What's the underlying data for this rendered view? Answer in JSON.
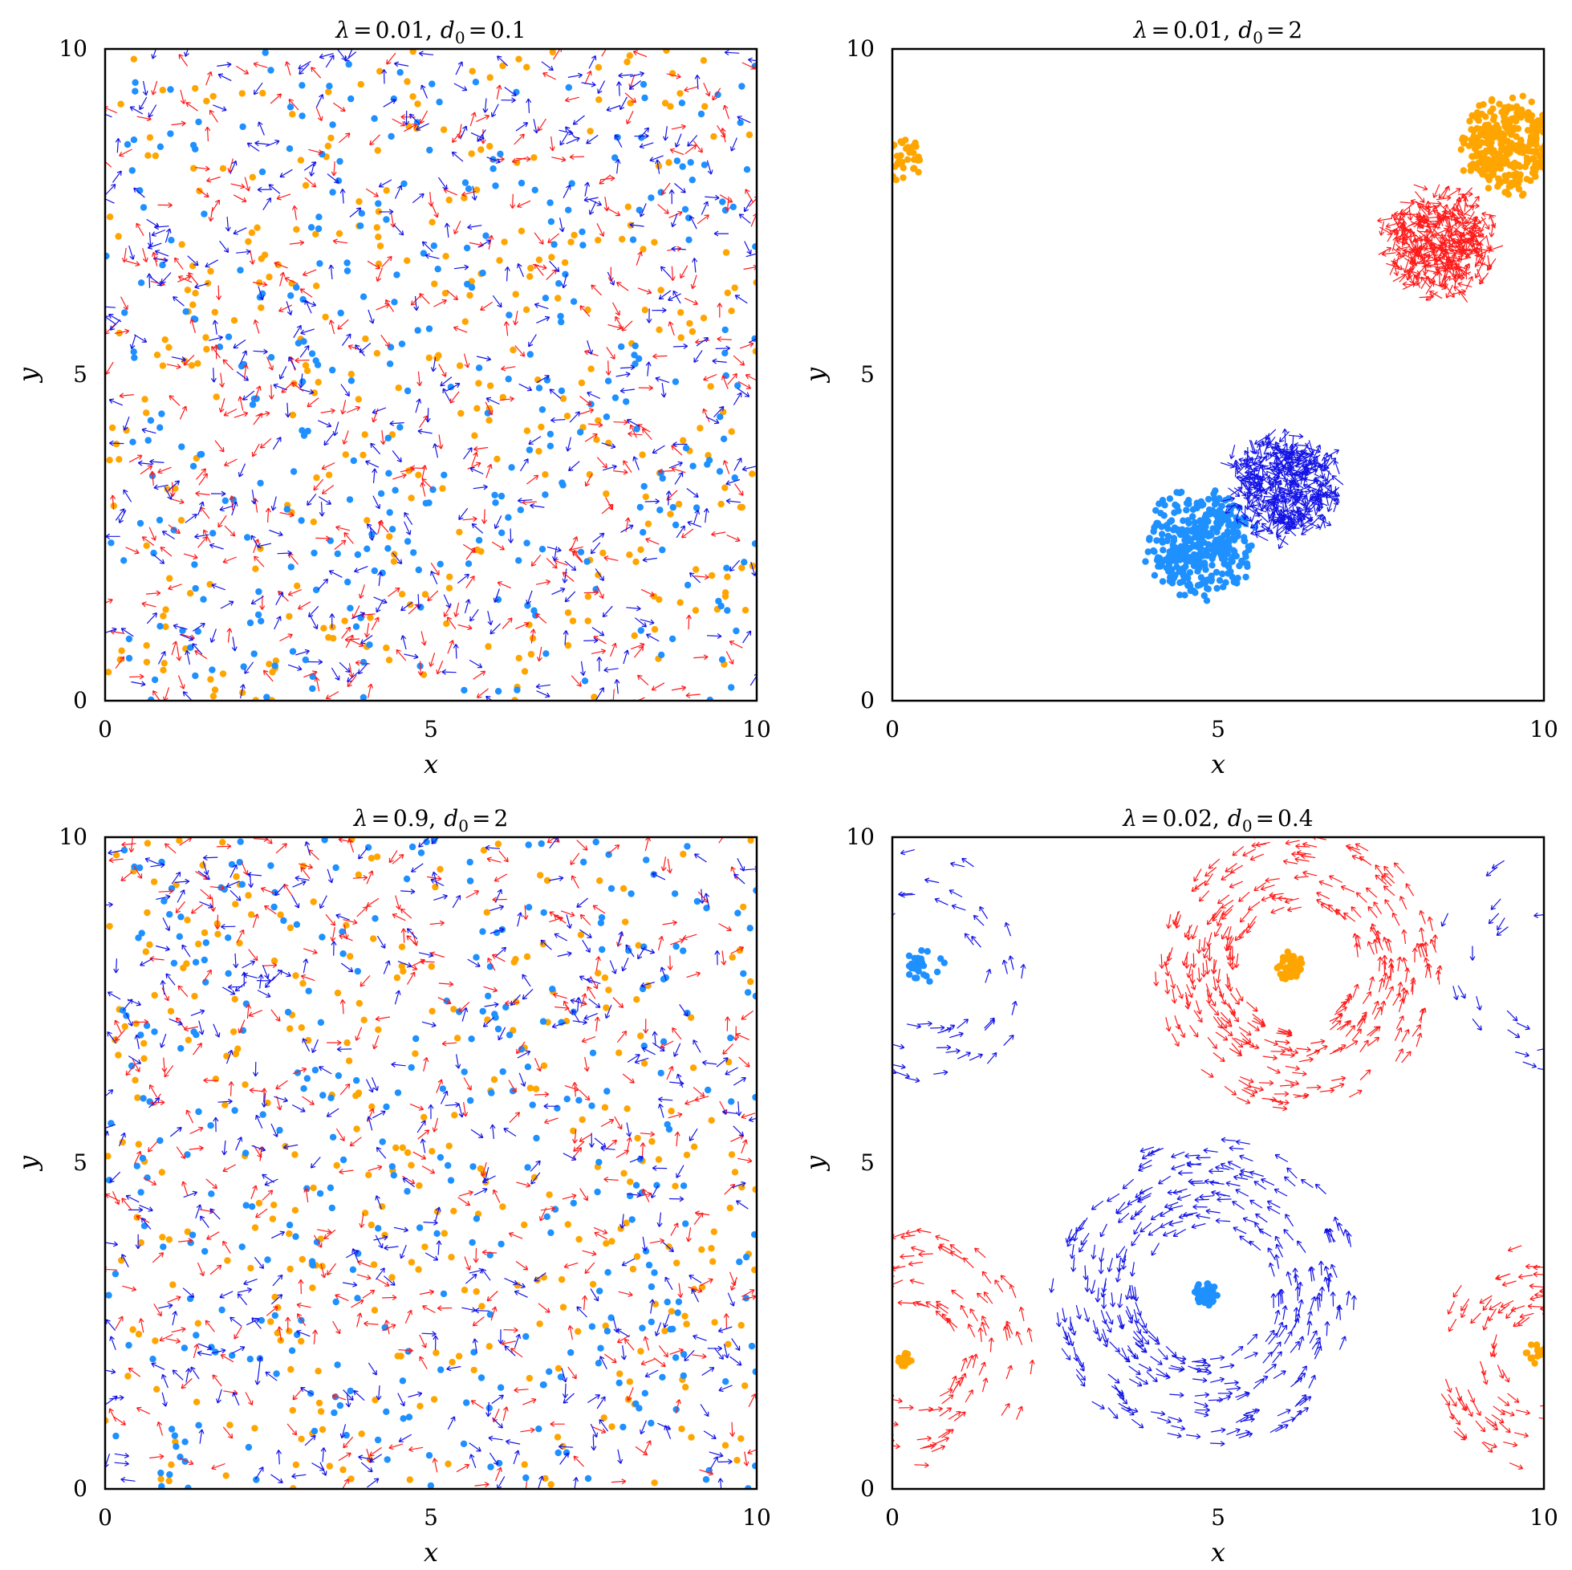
{
  "figure_colors": {
    "dot_orange": "#FFA500",
    "dot_blue": "#1E90FF",
    "arrow_red": "#FF1A1A",
    "arrow_blue": "#1414E6"
  },
  "chart_data": [
    {
      "type": "scatter",
      "panel": "top-left",
      "title_parts": [
        "λ",
        "=",
        "0.01,",
        "d",
        "0",
        "=",
        "0.1"
      ],
      "xlabel": "x",
      "ylabel": "y",
      "xlim": [
        0,
        10
      ],
      "ylim": [
        0,
        10
      ],
      "xticks": [
        "0",
        "5",
        "10"
      ],
      "yticks": [
        "0",
        "5",
        "10"
      ],
      "series": [
        {
          "type": "dots",
          "color": "#FFA500",
          "pattern": "uniform",
          "count": 330,
          "seed": 11
        },
        {
          "type": "dots",
          "color": "#1E90FF",
          "pattern": "uniform",
          "count": 330,
          "seed": 12
        },
        {
          "type": "arrows",
          "color": "#FF1A1A",
          "pattern": "uniform",
          "count": 400,
          "seed": 13
        },
        {
          "type": "arrows",
          "color": "#1414E6",
          "pattern": "uniform",
          "count": 400,
          "seed": 14
        }
      ]
    },
    {
      "type": "scatter",
      "panel": "top-right",
      "title_parts": [
        "λ",
        "=",
        "0.01,",
        "d",
        "0",
        "=",
        "2"
      ],
      "xlabel": "x",
      "ylabel": "y",
      "xlim": [
        0,
        10
      ],
      "ylim": [
        0,
        10
      ],
      "xticks": [
        "0",
        "5",
        "10"
      ],
      "yticks": [
        "0",
        "5",
        "10"
      ],
      "series": [
        {
          "type": "dots",
          "color": "#FFA500",
          "pattern": "cluster",
          "center": [
            9.5,
            8.5
          ],
          "radius": 0.85,
          "count": 330,
          "seed": 21
        },
        {
          "type": "dots",
          "color": "#FFA500",
          "pattern": "cluster",
          "center": [
            0.15,
            8.3
          ],
          "radius": 0.45,
          "count": 45,
          "seed": 22
        },
        {
          "type": "arrows",
          "color": "#FF1A1A",
          "pattern": "cluster",
          "center": [
            8.4,
            7.0
          ],
          "radius": 0.95,
          "count": 330,
          "seed": 23
        },
        {
          "type": "dots",
          "color": "#1E90FF",
          "pattern": "cluster",
          "center": [
            4.7,
            2.4
          ],
          "radius": 0.95,
          "count": 360,
          "seed": 24
        },
        {
          "type": "arrows",
          "color": "#1414E6",
          "pattern": "cluster",
          "center": [
            6.0,
            3.3
          ],
          "radius": 0.95,
          "count": 360,
          "seed": 25
        }
      ]
    },
    {
      "type": "scatter",
      "panel": "bottom-left",
      "title_parts": [
        "λ",
        "=",
        "0.9,",
        "d",
        "0",
        "=",
        "2"
      ],
      "xlabel": "x",
      "ylabel": "y",
      "xlim": [
        0,
        10
      ],
      "ylim": [
        0,
        10
      ],
      "xticks": [
        "0",
        "5",
        "10"
      ],
      "yticks": [
        "0",
        "5",
        "10"
      ],
      "series": [
        {
          "type": "dots",
          "color": "#FFA500",
          "pattern": "uniform",
          "count": 330,
          "seed": 31
        },
        {
          "type": "dots",
          "color": "#1E90FF",
          "pattern": "uniform",
          "count": 330,
          "seed": 32
        },
        {
          "type": "arrows",
          "color": "#FF1A1A",
          "pattern": "uniform",
          "count": 380,
          "seed": 33
        },
        {
          "type": "arrows",
          "color": "#1414E6",
          "pattern": "uniform",
          "count": 380,
          "seed": 34
        }
      ]
    },
    {
      "type": "scatter",
      "panel": "bottom-right",
      "title_parts": [
        "λ",
        "=",
        "0.02,",
        "d",
        "0",
        "=",
        "0.4"
      ],
      "xlabel": "x",
      "ylabel": "y",
      "xlim": [
        0,
        10
      ],
      "ylim": [
        0,
        10
      ],
      "xticks": [
        "0",
        "5",
        "10"
      ],
      "yticks": [
        "0",
        "5",
        "10"
      ],
      "series": [
        {
          "type": "dots",
          "color": "#FFA500",
          "pattern": "cluster",
          "center": [
            6.1,
            8.0
          ],
          "radius": 0.25,
          "count": 45,
          "seed": 41
        },
        {
          "type": "dots",
          "color": "#FFA500",
          "pattern": "cluster",
          "center": [
            0.2,
            2.0
          ],
          "radius": 0.15,
          "count": 20,
          "seed": 42
        },
        {
          "type": "dots",
          "color": "#FFA500",
          "pattern": "cluster",
          "center": [
            9.9,
            2.1
          ],
          "radius": 0.2,
          "count": 20,
          "seed": 43
        },
        {
          "type": "dots",
          "color": "#1E90FF",
          "pattern": "cluster",
          "center": [
            4.8,
            3.0
          ],
          "radius": 0.22,
          "count": 45,
          "seed": 44
        },
        {
          "type": "dots",
          "color": "#1E90FF",
          "pattern": "cluster",
          "center": [
            0.5,
            8.0
          ],
          "radius": 0.35,
          "count": 25,
          "seed": 45
        },
        {
          "type": "arrows",
          "color": "#FF1A1A",
          "pattern": "ring",
          "center": [
            6.2,
            8.0
          ],
          "r_min": 0.9,
          "r_max": 2.2,
          "count": 300,
          "seed": 46
        },
        {
          "type": "arrows",
          "color": "#FF1A1A",
          "pattern": "ring",
          "center": [
            0.3,
            2.1
          ],
          "r_min": 0.7,
          "r_max": 1.9,
          "count": 130,
          "seed": 47
        },
        {
          "type": "arrows",
          "color": "#FF1A1A",
          "pattern": "ring",
          "center": [
            10.0,
            2.0
          ],
          "r_min": 0.6,
          "r_max": 1.8,
          "count": 130,
          "seed": 48
        },
        {
          "type": "arrows",
          "color": "#1414E6",
          "pattern": "ring",
          "center": [
            4.8,
            3.0
          ],
          "r_min": 1.0,
          "r_max": 2.4,
          "count": 320,
          "seed": 49
        },
        {
          "type": "arrows",
          "color": "#1414E6",
          "pattern": "ring",
          "center": [
            0.5,
            8.0
          ],
          "r_min": 0.8,
          "r_max": 1.8,
          "count": 60,
          "seed": 50
        },
        {
          "type": "arrows",
          "color": "#1414E6",
          "pattern": "ring",
          "center": [
            10.0,
            8.0
          ],
          "r_min": 0.8,
          "r_max": 1.8,
          "count": 40,
          "seed": 51
        }
      ]
    }
  ]
}
